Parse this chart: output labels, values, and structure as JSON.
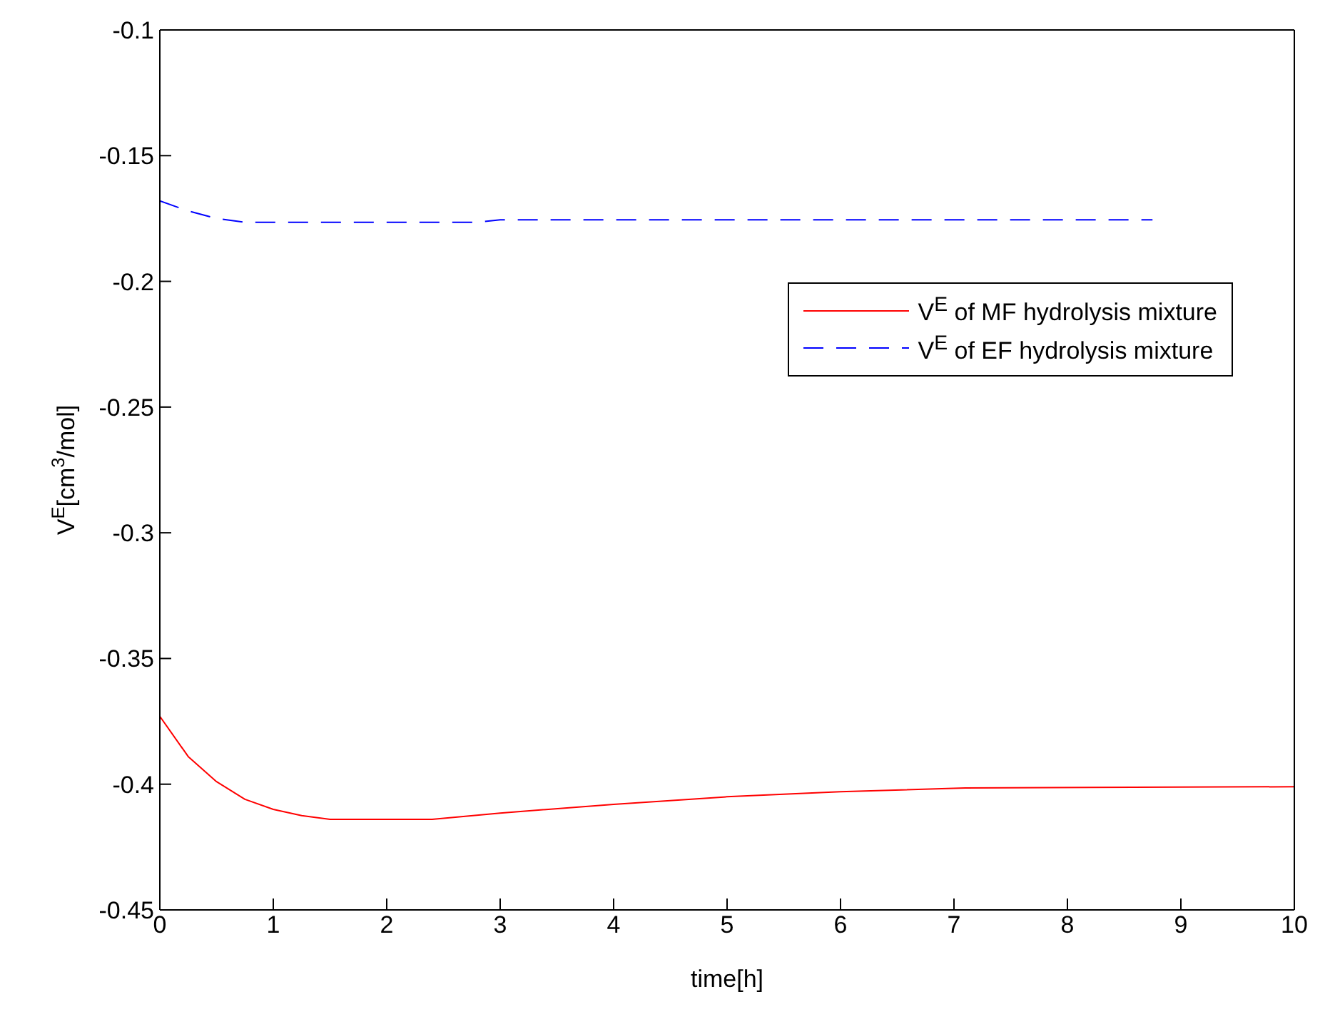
{
  "chart_data": {
    "type": "line",
    "xlabel": "time[h]",
    "ylabel": "V$^{E}$[cm$^{3}$/mol]",
    "xlim": [
      0,
      10
    ],
    "xticks": [
      0,
      1,
      2,
      3,
      4,
      5,
      6,
      7,
      8,
      9,
      10
    ],
    "ylim": [
      -0.45,
      -0.1
    ],
    "yticks": [
      -0.45,
      -0.4,
      -0.35,
      -0.3,
      -0.25,
      -0.2,
      -0.15,
      -0.1
    ],
    "grid": false,
    "legend": "top right",
    "marker": "none",
    "series": [
      {
        "name": "V$^{E}$ of MF hydrolysis mixture",
        "color": "#ff0000",
        "line_style": "solid",
        "x": [
          0,
          0.25,
          0.5,
          0.75,
          1,
          1.25,
          1.5,
          2.4,
          3,
          4,
          5,
          6,
          7.1,
          10
        ],
        "values": [
          -0.373,
          -0.389,
          -0.399,
          -0.406,
          -0.41,
          -0.4125,
          -0.414,
          -0.414,
          -0.4115,
          -0.408,
          -0.405,
          -0.403,
          -0.4015,
          -0.401
        ]
      },
      {
        "name": "V$^{E}$ of EF hydrolysis mixture",
        "color": "#0000ff",
        "line_style": "dashed",
        "x": [
          0,
          0.25,
          0.5,
          0.75,
          2.8,
          3,
          8.75
        ],
        "values": [
          -0.168,
          -0.172,
          -0.175,
          -0.1765,
          -0.1765,
          -0.1755,
          -0.1755
        ]
      }
    ]
  }
}
